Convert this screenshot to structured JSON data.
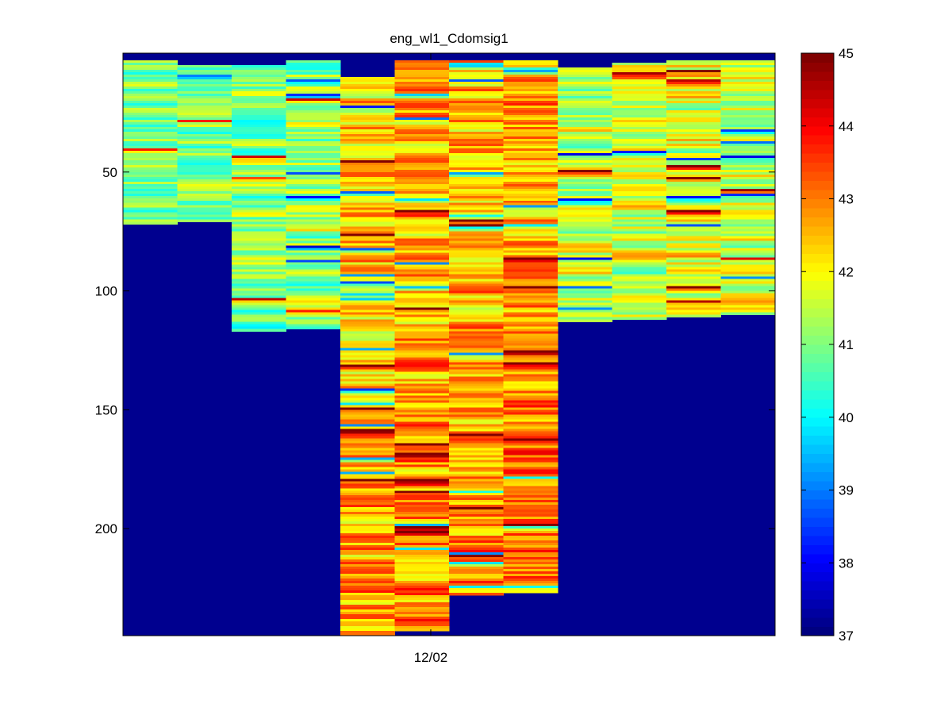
{
  "chart_data": {
    "type": "heatmap",
    "title": "eng_wl1_Cdomsig1",
    "xlabel": "",
    "ylabel": "",
    "x_ticks": [
      "12/02"
    ],
    "y_ticks": [
      50,
      100,
      150,
      200
    ],
    "y_reversed": true,
    "ylim": [
      0,
      245
    ],
    "colormap": "jet",
    "clim": [
      37,
      45
    ],
    "colorbar_ticks": [
      37,
      38,
      39,
      40,
      41,
      42,
      43,
      44,
      45
    ],
    "background_color": "#00008f",
    "columns": [
      {
        "index": 1,
        "top": 3,
        "bottom": 72,
        "mean": 41.0,
        "spread": 1.2
      },
      {
        "index": 2,
        "top": 5,
        "bottom": 71,
        "mean": 41.0,
        "spread": 1.2
      },
      {
        "index": 3,
        "top": 5,
        "bottom": 117,
        "mean": 41.0,
        "spread": 1.4
      },
      {
        "index": 4,
        "top": 3,
        "bottom": 116,
        "mean": 41.3,
        "spread": 1.5
      },
      {
        "index": 5,
        "top": 10,
        "bottom": 245,
        "mean": 42.3,
        "spread": 1.6
      },
      {
        "index": 6,
        "top": 3,
        "bottom": 243,
        "mean": 42.6,
        "spread": 1.5
      },
      {
        "index": 7,
        "top": 3,
        "bottom": 228,
        "mean": 42.6,
        "spread": 1.5
      },
      {
        "index": 8,
        "top": 3,
        "bottom": 227,
        "mean": 42.8,
        "spread": 1.4
      },
      {
        "index": 9,
        "top": 6,
        "bottom": 113,
        "mean": 41.6,
        "spread": 1.5
      },
      {
        "index": 10,
        "top": 4,
        "bottom": 112,
        "mean": 41.7,
        "spread": 1.5
      },
      {
        "index": 11,
        "top": 3,
        "bottom": 111,
        "mean": 41.8,
        "spread": 1.6
      },
      {
        "index": 12,
        "top": 3,
        "bottom": 110,
        "mean": 41.7,
        "spread": 1.5
      }
    ]
  }
}
